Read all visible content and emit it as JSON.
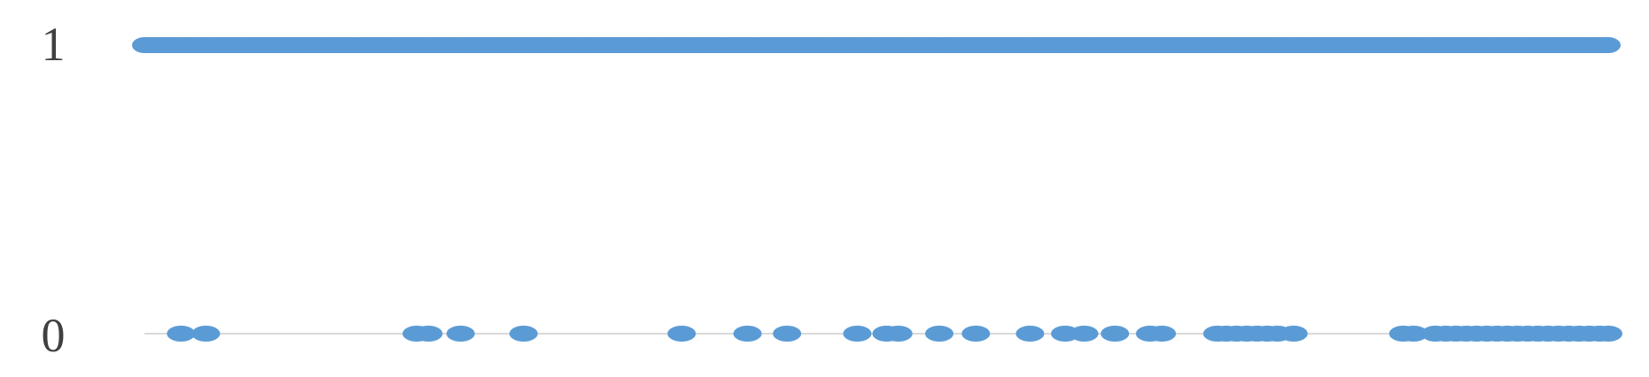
{
  "chart_data": {
    "type": "scatter",
    "title": "",
    "xlabel": "",
    "ylabel": "",
    "ylim": [
      0,
      1
    ],
    "xlim": [
      0,
      100
    ],
    "y_ticks": [
      "0",
      "1"
    ],
    "grid": false,
    "legend": "none",
    "marker_color": "#5b9bd5",
    "baseline_color": "#d9d9d9",
    "series": [
      {
        "values_y1": {
          "y": 1,
          "x": [
            0,
            1,
            2,
            3,
            4,
            5,
            6,
            7,
            8,
            9,
            10,
            11,
            12,
            13,
            14,
            15,
            16,
            17,
            18,
            19,
            20,
            21,
            22,
            23,
            24,
            25,
            26,
            27,
            28,
            29,
            30,
            31,
            32,
            33,
            34,
            35,
            36,
            37,
            38,
            39,
            40,
            41,
            42,
            43,
            44,
            45,
            46,
            47,
            48,
            49,
            50,
            51,
            52,
            53,
            54,
            55,
            56,
            57,
            58,
            59,
            60,
            61,
            62,
            63,
            64,
            65,
            66,
            67,
            68,
            69,
            70,
            71,
            72,
            73,
            74,
            75,
            76,
            77,
            78,
            79,
            80,
            81,
            82,
            83,
            84,
            85,
            86,
            87,
            88,
            89,
            90,
            91,
            92,
            93,
            94,
            95,
            96,
            97,
            98,
            99,
            100
          ]
        },
        "values_y0": {
          "y": 0,
          "x": [
            2.5,
            4.2,
            18.6,
            19.4,
            21.6,
            25.9,
            36.7,
            41.2,
            43.9,
            48.7,
            50.7,
            51.5,
            54.3,
            56.8,
            60.5,
            62.9,
            64.2,
            66.3,
            68.7,
            69.5,
            73.3,
            73.9,
            74.6,
            75.3,
            76.0,
            76.7,
            77.4,
            78.5,
            86.0,
            86.7,
            88.2,
            88.9,
            89.6,
            90.3,
            91.0,
            91.7,
            92.4,
            93.1,
            93.8,
            94.5,
            95.2,
            95.9,
            96.6,
            97.3,
            98.0,
            98.7,
            99.4,
            100
          ]
        }
      }
    ]
  }
}
